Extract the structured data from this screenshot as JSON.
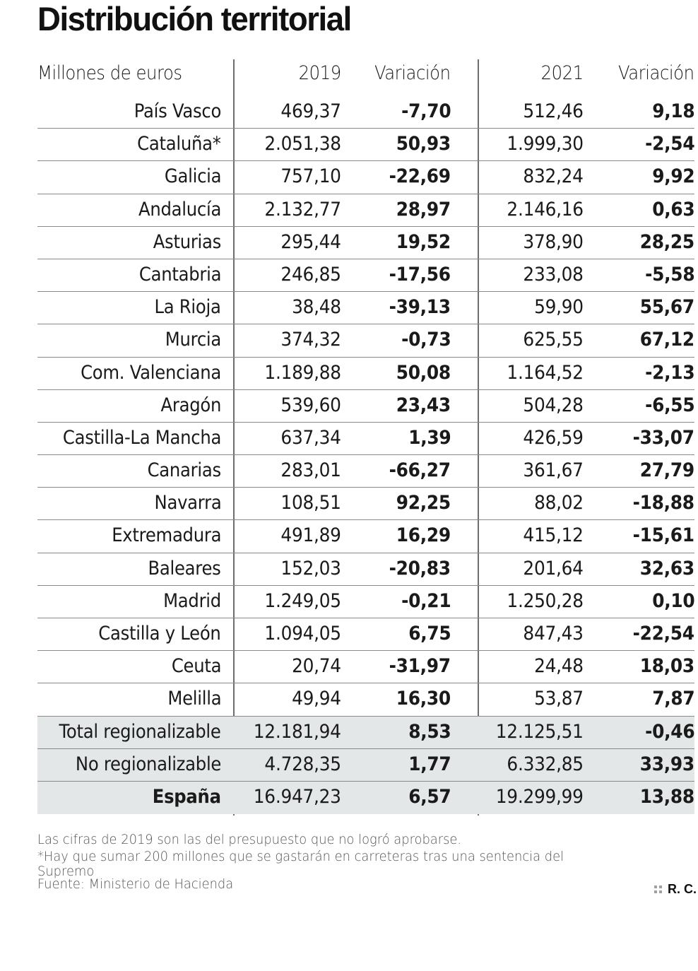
{
  "title": "Distribución territorial",
  "header": {
    "unit": "Millones de euros",
    "col_2019": "2019",
    "col_var_2019": "Variación",
    "col_2021": "2021",
    "col_var_2021": "Variación"
  },
  "rows": [
    {
      "name": "País Vasco",
      "v2019": "469,37",
      "var2019": "-7,70",
      "v2021": "512,46",
      "var2021": "9,18"
    },
    {
      "name": "Cataluña*",
      "v2019": "2.051,38",
      "var2019": "50,93",
      "v2021": "1.999,30",
      "var2021": "-2,54"
    },
    {
      "name": "Galicia",
      "v2019": "757,10",
      "var2019": "-22,69",
      "v2021": "832,24",
      "var2021": "9,92"
    },
    {
      "name": "Andalucía",
      "v2019": "2.132,77",
      "var2019": "28,97",
      "v2021": "2.146,16",
      "var2021": "0,63"
    },
    {
      "name": "Asturias",
      "v2019": "295,44",
      "var2019": "19,52",
      "v2021": "378,90",
      "var2021": "28,25"
    },
    {
      "name": "Cantabria",
      "v2019": "246,85",
      "var2019": "-17,56",
      "v2021": "233,08",
      "var2021": "-5,58"
    },
    {
      "name": "La Rioja",
      "v2019": "38,48",
      "var2019": "-39,13",
      "v2021": "59,90",
      "var2021": "55,67"
    },
    {
      "name": "Murcia",
      "v2019": "374,32",
      "var2019": "-0,73",
      "v2021": "625,55",
      "var2021": "67,12"
    },
    {
      "name": "Com. Valenciana",
      "v2019": "1.189,88",
      "var2019": "50,08",
      "v2021": "1.164,52",
      "var2021": "-2,13"
    },
    {
      "name": "Aragón",
      "v2019": "539,60",
      "var2019": "23,43",
      "v2021": "504,28",
      "var2021": "-6,55"
    },
    {
      "name": "Castilla-La Mancha",
      "v2019": "637,34",
      "var2019": "1,39",
      "v2021": "426,59",
      "var2021": "-33,07"
    },
    {
      "name": "Canarias",
      "v2019": "283,01",
      "var2019": "-66,27",
      "v2021": "361,67",
      "var2021": "27,79"
    },
    {
      "name": "Navarra",
      "v2019": "108,51",
      "var2019": "92,25",
      "v2021": "88,02",
      "var2021": "-18,88"
    },
    {
      "name": "Extremadura",
      "v2019": "491,89",
      "var2019": "16,29",
      "v2021": "415,12",
      "var2021": "-15,61"
    },
    {
      "name": "Baleares",
      "v2019": "152,03",
      "var2019": "-20,83",
      "v2021": "201,64",
      "var2021": "32,63"
    },
    {
      "name": "Madrid",
      "v2019": "1.249,05",
      "var2019": "-0,21",
      "v2021": "1.250,28",
      "var2021": "0,10"
    },
    {
      "name": "Castilla y León",
      "v2019": "1.094,05",
      "var2019": "6,75",
      "v2021": "847,43",
      "var2021": "-22,54"
    },
    {
      "name": "Ceuta",
      "v2019": "20,74",
      "var2019": "-31,97",
      "v2021": "24,48",
      "var2021": "18,03"
    },
    {
      "name": "Melilla",
      "v2019": "49,94",
      "var2019": "16,30",
      "v2021": "53,87",
      "var2021": "7,87"
    }
  ],
  "totals": [
    {
      "name": "Total regionalizable",
      "v2019": "12.181,94",
      "var2019": "8,53",
      "v2021": "12.125,51",
      "var2021": "-0,46"
    },
    {
      "name": "No regionalizable",
      "v2019": "4.728,35",
      "var2019": "1,77",
      "v2021": "6.332,85",
      "var2021": "33,93"
    },
    {
      "name": "España",
      "v2019": "16.947,23",
      "var2019": "6,57",
      "v2021": "19.299,99",
      "var2021": "13,88"
    }
  ],
  "notes": {
    "line1": "Las cifras de 2019 son las del presupuesto que no logró aprobarse.",
    "line2": "*Hay que sumar 200 millones que se gastarán en carreteras tras una sentencia del",
    "line3": "Supremo",
    "source": "Fuente: Ministerio de Hacienda"
  },
  "credit": "R. C.",
  "colors": {
    "shaded_row": "#e4e7e8",
    "divider": "#8a8a8a",
    "text": "#1a1a1a"
  }
}
